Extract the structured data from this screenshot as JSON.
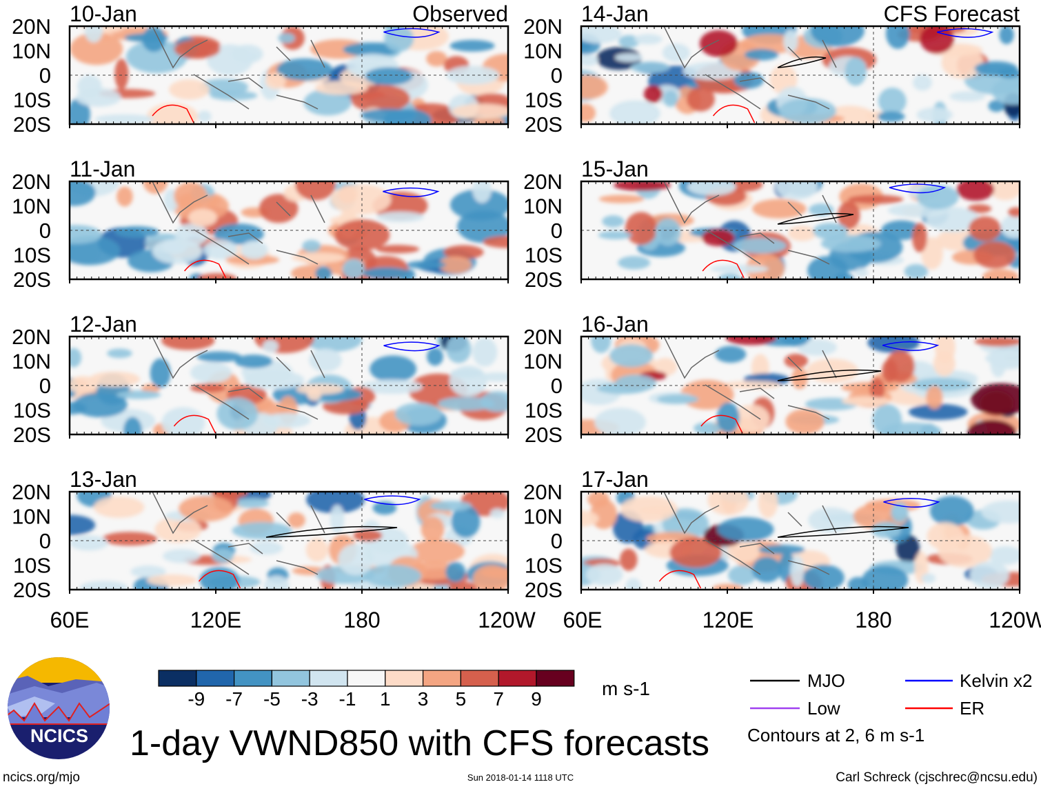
{
  "figure": {
    "title": "1-day VWND850 with CFS forecasts",
    "left_column_label": "Observed",
    "right_column_label": "CFS Forecast",
    "left_panels": [
      "10-Jan",
      "11-Jan",
      "12-Jan",
      "13-Jan"
    ],
    "right_panels": [
      "14-Jan",
      "15-Jan",
      "16-Jan",
      "17-Jan"
    ],
    "lat_labels": [
      "20N",
      "10N",
      "0",
      "10S",
      "20S"
    ],
    "lon_labels": [
      "60E",
      "120E",
      "180",
      "120W"
    ]
  },
  "colorbar": {
    "unit": "m s-1",
    "ticks": [
      "-9",
      "-7",
      "-5",
      "-3",
      "-1",
      "1",
      "3",
      "5",
      "7",
      "9"
    ],
    "colors": [
      "#0b2f63",
      "#2166ac",
      "#4393c3",
      "#92c5de",
      "#d1e5f0",
      "#f7f7f7",
      "#fddbc7",
      "#f4a582",
      "#d6604d",
      "#b2182b",
      "#67001f"
    ]
  },
  "legend": {
    "items": [
      {
        "label": "MJO",
        "color": "#000000"
      },
      {
        "label": "Kelvin x2",
        "color": "#0000ff"
      },
      {
        "label": "Low",
        "color": "#a040f0"
      },
      {
        "label": "ER",
        "color": "#ff0000"
      }
    ],
    "contours_note": "Contours at 2, 6 m s-1"
  },
  "footer": {
    "logo_text": "NCICS",
    "url": "ncics.org/mjo",
    "timestamp": "Sun 2018-01-14 1118 UTC",
    "author": "Carl Schreck (cjschrec@ncsu.edu)"
  }
}
